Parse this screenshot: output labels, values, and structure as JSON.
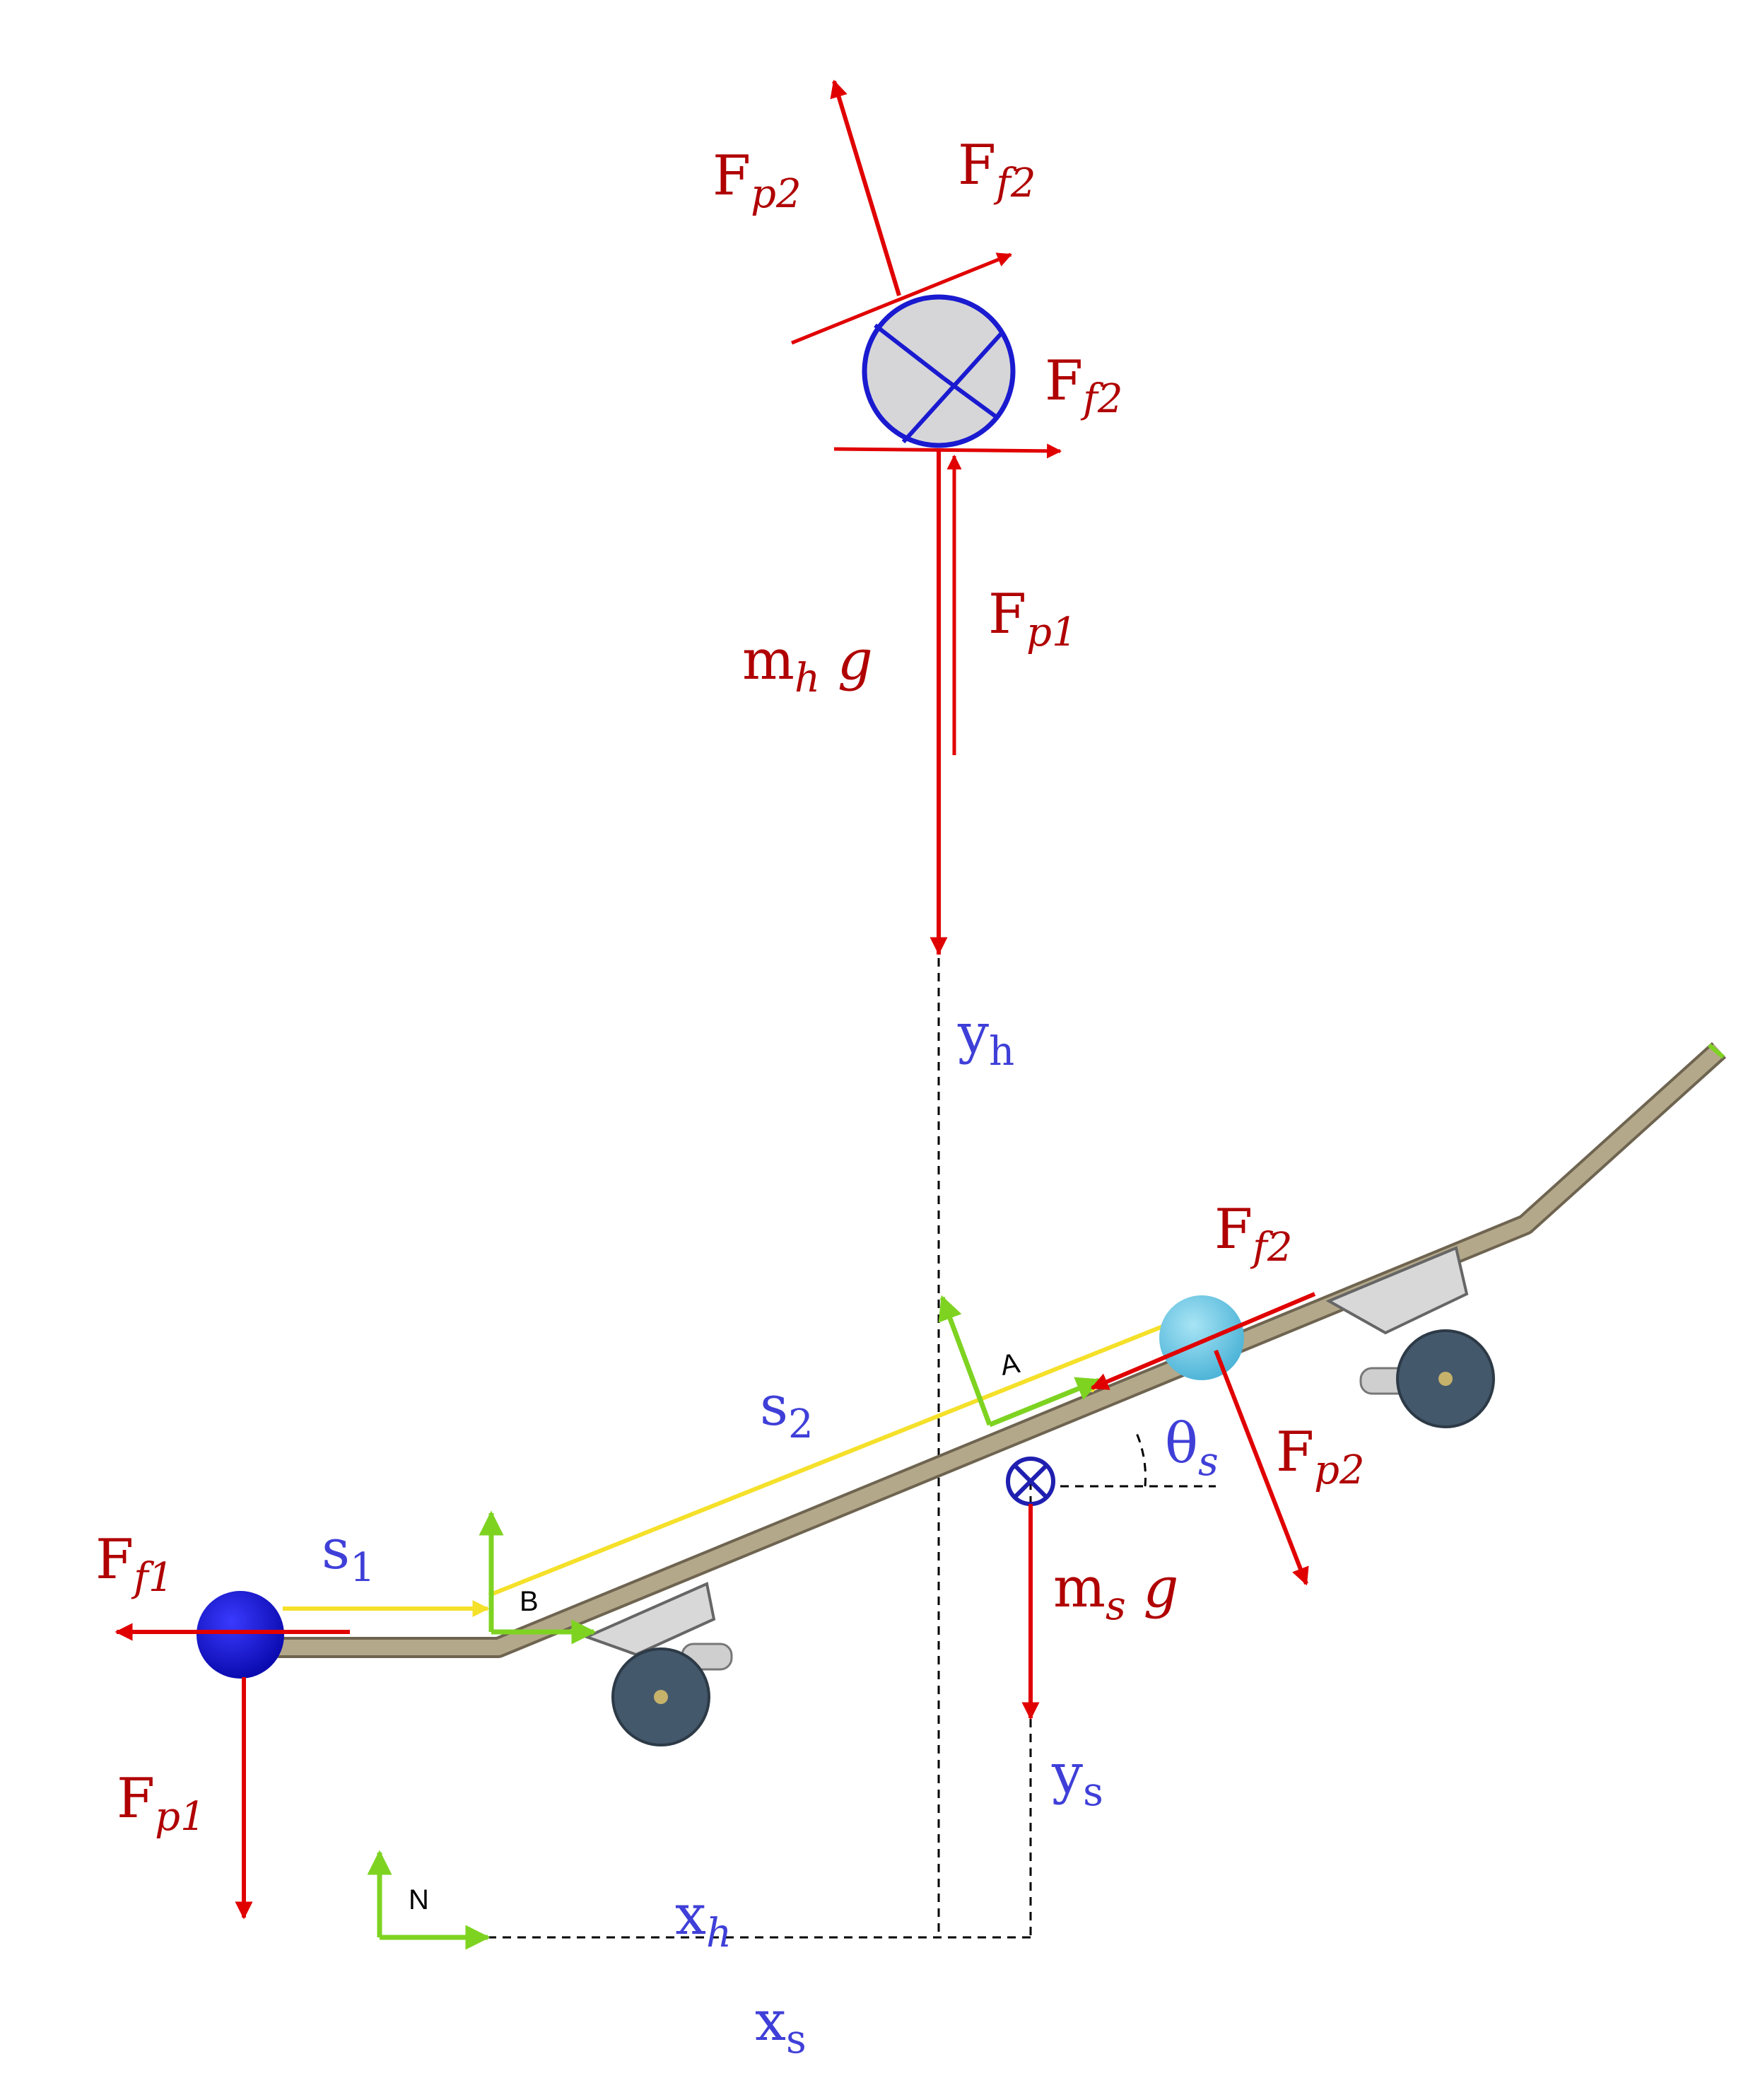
{
  "colors": {
    "force": "#e00000",
    "force_label": "#b00000",
    "kinematic_label": "#3f3fd8",
    "frame_axis": "#7ed321",
    "position_vector": "#f5e02a",
    "board": "#b3a88a",
    "wheel": "#44586b",
    "hand_node": "#1111cc",
    "foot_node": "#6ec8e6",
    "cm_marker": "#1f1fb0",
    "head_fill": "#d6d6d9"
  },
  "labels": {
    "head_Fp2": {
      "base": "F",
      "sub": "p2"
    },
    "head_Ff2_top": {
      "base": "F",
      "sub": "f2"
    },
    "head_Ff2_side": {
      "base": "F",
      "sub": "f2"
    },
    "head_Fp1": {
      "base": "F",
      "sub": "p1"
    },
    "head_weight": {
      "base": "m",
      "sub": "h",
      "tail": " g"
    },
    "yh": {
      "base": "y",
      "sub": "h"
    },
    "board_Ff2": {
      "base": "F",
      "sub": "f2"
    },
    "board_Fp2": {
      "base": "F",
      "sub": "p2"
    },
    "theta_s": {
      "base": "θ",
      "sub": "s"
    },
    "s2": {
      "base": "s",
      "sub": "2"
    },
    "s1": {
      "base": "s",
      "sub": "1"
    },
    "Ff1": {
      "base": "F",
      "sub": "f1"
    },
    "Fp1": {
      "base": "F",
      "sub": "p1"
    },
    "board_weight": {
      "base": "m",
      "sub": "s",
      "tail": " g"
    },
    "ys": {
      "base": "y",
      "sub": "s"
    },
    "xh": {
      "base": "x",
      "sub": "h"
    },
    "xs": {
      "base": "x",
      "sub": "s"
    }
  },
  "frames": {
    "A": "A",
    "B": "B",
    "N": "N"
  },
  "icons": {
    "head": "head-circle-icon",
    "hand": "hand-contact-icon",
    "foot": "foot-contact-icon",
    "center_of_mass": "center-of-mass-icon",
    "truck": "truck-wheel-icon"
  }
}
